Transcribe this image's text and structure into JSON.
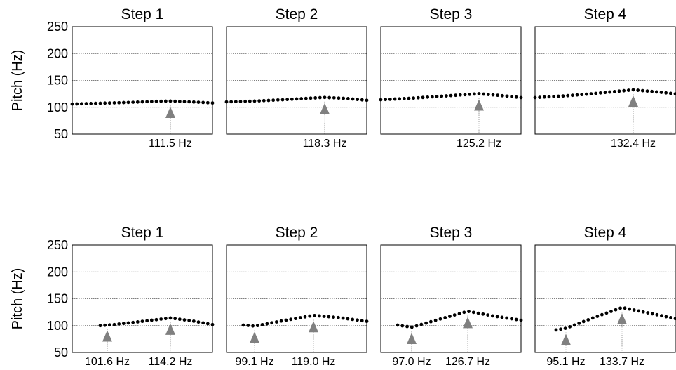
{
  "chart_data": [
    {
      "type": "line",
      "ylabel": "Pitch (Hz)",
      "ylim": [
        50,
        250
      ],
      "yticks": [
        50,
        100,
        150,
        200,
        250
      ],
      "grid": true,
      "panels": [
        {
          "title": "Step 1",
          "peaks": [
            {
              "label": "111.5 Hz",
              "value": 111.5,
              "pos": 0.7
            }
          ],
          "contour": [
            [
              0,
              106
            ],
            [
              0.2,
              107.5
            ],
            [
              0.4,
              109
            ],
            [
              0.6,
              111
            ],
            [
              0.7,
              111.5
            ],
            [
              0.85,
              110
            ],
            [
              1,
              108
            ]
          ]
        },
        {
          "title": "Step 2",
          "peaks": [
            {
              "label": "118.3 Hz",
              "value": 118.3,
              "pos": 0.7
            }
          ],
          "contour": [
            [
              0,
              110
            ],
            [
              0.2,
              111.5
            ],
            [
              0.4,
              114
            ],
            [
              0.6,
              117
            ],
            [
              0.7,
              118.3
            ],
            [
              0.85,
              116.5
            ],
            [
              1,
              113
            ]
          ]
        },
        {
          "title": "Step 3",
          "peaks": [
            {
              "label": "125.2 Hz",
              "value": 125.2,
              "pos": 0.7
            }
          ],
          "contour": [
            [
              0,
              114
            ],
            [
              0.2,
              116.5
            ],
            [
              0.4,
              120
            ],
            [
              0.6,
              123.5
            ],
            [
              0.7,
              125.2
            ],
            [
              0.85,
              122
            ],
            [
              1,
              118
            ]
          ]
        },
        {
          "title": "Step 4",
          "peaks": [
            {
              "label": "132.4 Hz",
              "value": 132.4,
              "pos": 0.7
            }
          ],
          "contour": [
            [
              0,
              118
            ],
            [
              0.2,
              121
            ],
            [
              0.4,
              125
            ],
            [
              0.6,
              130
            ],
            [
              0.7,
              132.4
            ],
            [
              0.85,
              129
            ],
            [
              1,
              125
            ]
          ]
        }
      ]
    },
    {
      "type": "line",
      "ylabel": "Pitch (Hz)",
      "ylim": [
        50,
        250
      ],
      "yticks": [
        50,
        100,
        150,
        200,
        250
      ],
      "grid": true,
      "panels": [
        {
          "title": "Step 1",
          "peaks": [
            {
              "label": "101.6 Hz",
              "value": 101.6,
              "pos": 0.25
            },
            {
              "label": "114.2 Hz",
              "value": 114.2,
              "pos": 0.7
            }
          ],
          "contour": [
            [
              0.2,
              100
            ],
            [
              0.3,
              102
            ],
            [
              0.5,
              108
            ],
            [
              0.7,
              114.2
            ],
            [
              0.85,
              109
            ],
            [
              1,
              102
            ]
          ]
        },
        {
          "title": "Step 2",
          "peaks": [
            {
              "label": "99.1 Hz",
              "value": 99.1,
              "pos": 0.2
            },
            {
              "label": "119.0 Hz",
              "value": 119.0,
              "pos": 0.62
            }
          ],
          "contour": [
            [
              0.12,
              101
            ],
            [
              0.2,
              99.1
            ],
            [
              0.4,
              109
            ],
            [
              0.62,
              119
            ],
            [
              0.8,
              115
            ],
            [
              1,
              108
            ]
          ]
        },
        {
          "title": "Step 3",
          "peaks": [
            {
              "label": "97.0 Hz",
              "value": 97.0,
              "pos": 0.22
            },
            {
              "label": "126.7 Hz",
              "value": 126.7,
              "pos": 0.62
            }
          ],
          "contour": [
            [
              0.12,
              101
            ],
            [
              0.22,
              97
            ],
            [
              0.42,
              112
            ],
            [
              0.62,
              126.7
            ],
            [
              0.8,
              118
            ],
            [
              1,
              110
            ]
          ]
        },
        {
          "title": "Step 4",
          "peaks": [
            {
              "label": "95.1 Hz",
              "value": 95.1,
              "pos": 0.22
            },
            {
              "label": "133.7 Hz",
              "value": 133.7,
              "pos": 0.62
            }
          ],
          "contour": [
            [
              0.15,
              92
            ],
            [
              0.22,
              95.1
            ],
            [
              0.42,
              115
            ],
            [
              0.62,
              133.7
            ],
            [
              0.8,
              124
            ],
            [
              1,
              113
            ]
          ]
        }
      ]
    }
  ]
}
